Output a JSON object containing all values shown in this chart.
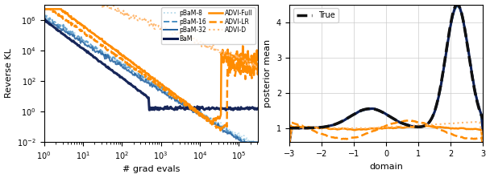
{
  "fig_width": 6.08,
  "fig_height": 2.22,
  "dpi": 100,
  "left_ylabel": "Reverse KL",
  "left_xlabel": "# grad evals",
  "right_ylabel": "posterior mean",
  "right_xlabel": "domain",
  "right_xlim": [
    -3,
    3
  ],
  "right_ylim": [
    0.6,
    4.5
  ],
  "colors_blue": [
    "#aad4e8",
    "#4a90c4",
    "#2060a0",
    "#0a1a50"
  ],
  "colors_orange": [
    "#ff8c00",
    "#ff8c00",
    "#ffb870"
  ],
  "color_true": "#111111"
}
